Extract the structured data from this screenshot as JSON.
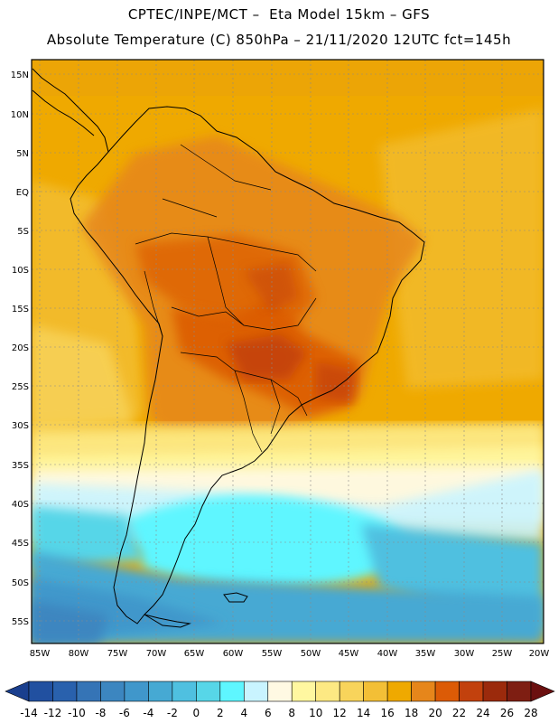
{
  "title_line1": "CPTEC/INPE/MCT –  Eta Model 15km – GFS",
  "title_line2": "Absolute Temperature (C) 850hPa – 21/11/2020 12UTC fct=145h",
  "map": {
    "lat_labels": [
      "15N",
      "10N",
      "5N",
      "EQ",
      "5S",
      "10S",
      "15S",
      "20S",
      "25S",
      "30S",
      "35S",
      "40S",
      "45S",
      "50S",
      "55S"
    ],
    "lon_labels": [
      "85W",
      "80W",
      "75W",
      "70W",
      "65W",
      "60W",
      "55W",
      "50W",
      "45W",
      "40W",
      "35W",
      "30W",
      "25W",
      "20W"
    ]
  },
  "colorbar": {
    "ticks": [
      "-14",
      "-12",
      "-10",
      "-8",
      "-6",
      "-4",
      "-2",
      "0",
      "2",
      "4",
      "6",
      "8",
      "10",
      "12",
      "14",
      "16",
      "18",
      "20",
      "22",
      "24",
      "26",
      "28"
    ],
    "colors": [
      "#1a3f8e",
      "#2150a0",
      "#2961ad",
      "#3574b6",
      "#3c86c0",
      "#4097cb",
      "#46a9d3",
      "#4fc0e0",
      "#57d6e8",
      "#5ef6ff",
      "#c9f4ff",
      "#fff9e3",
      "#fff7a0",
      "#fde983",
      "#f8d45b",
      "#f3bf36",
      "#efa900",
      "#e6861b",
      "#dc5b06",
      "#c2410d",
      "#9b2a0c",
      "#7e1e12",
      "#6b1010"
    ]
  }
}
